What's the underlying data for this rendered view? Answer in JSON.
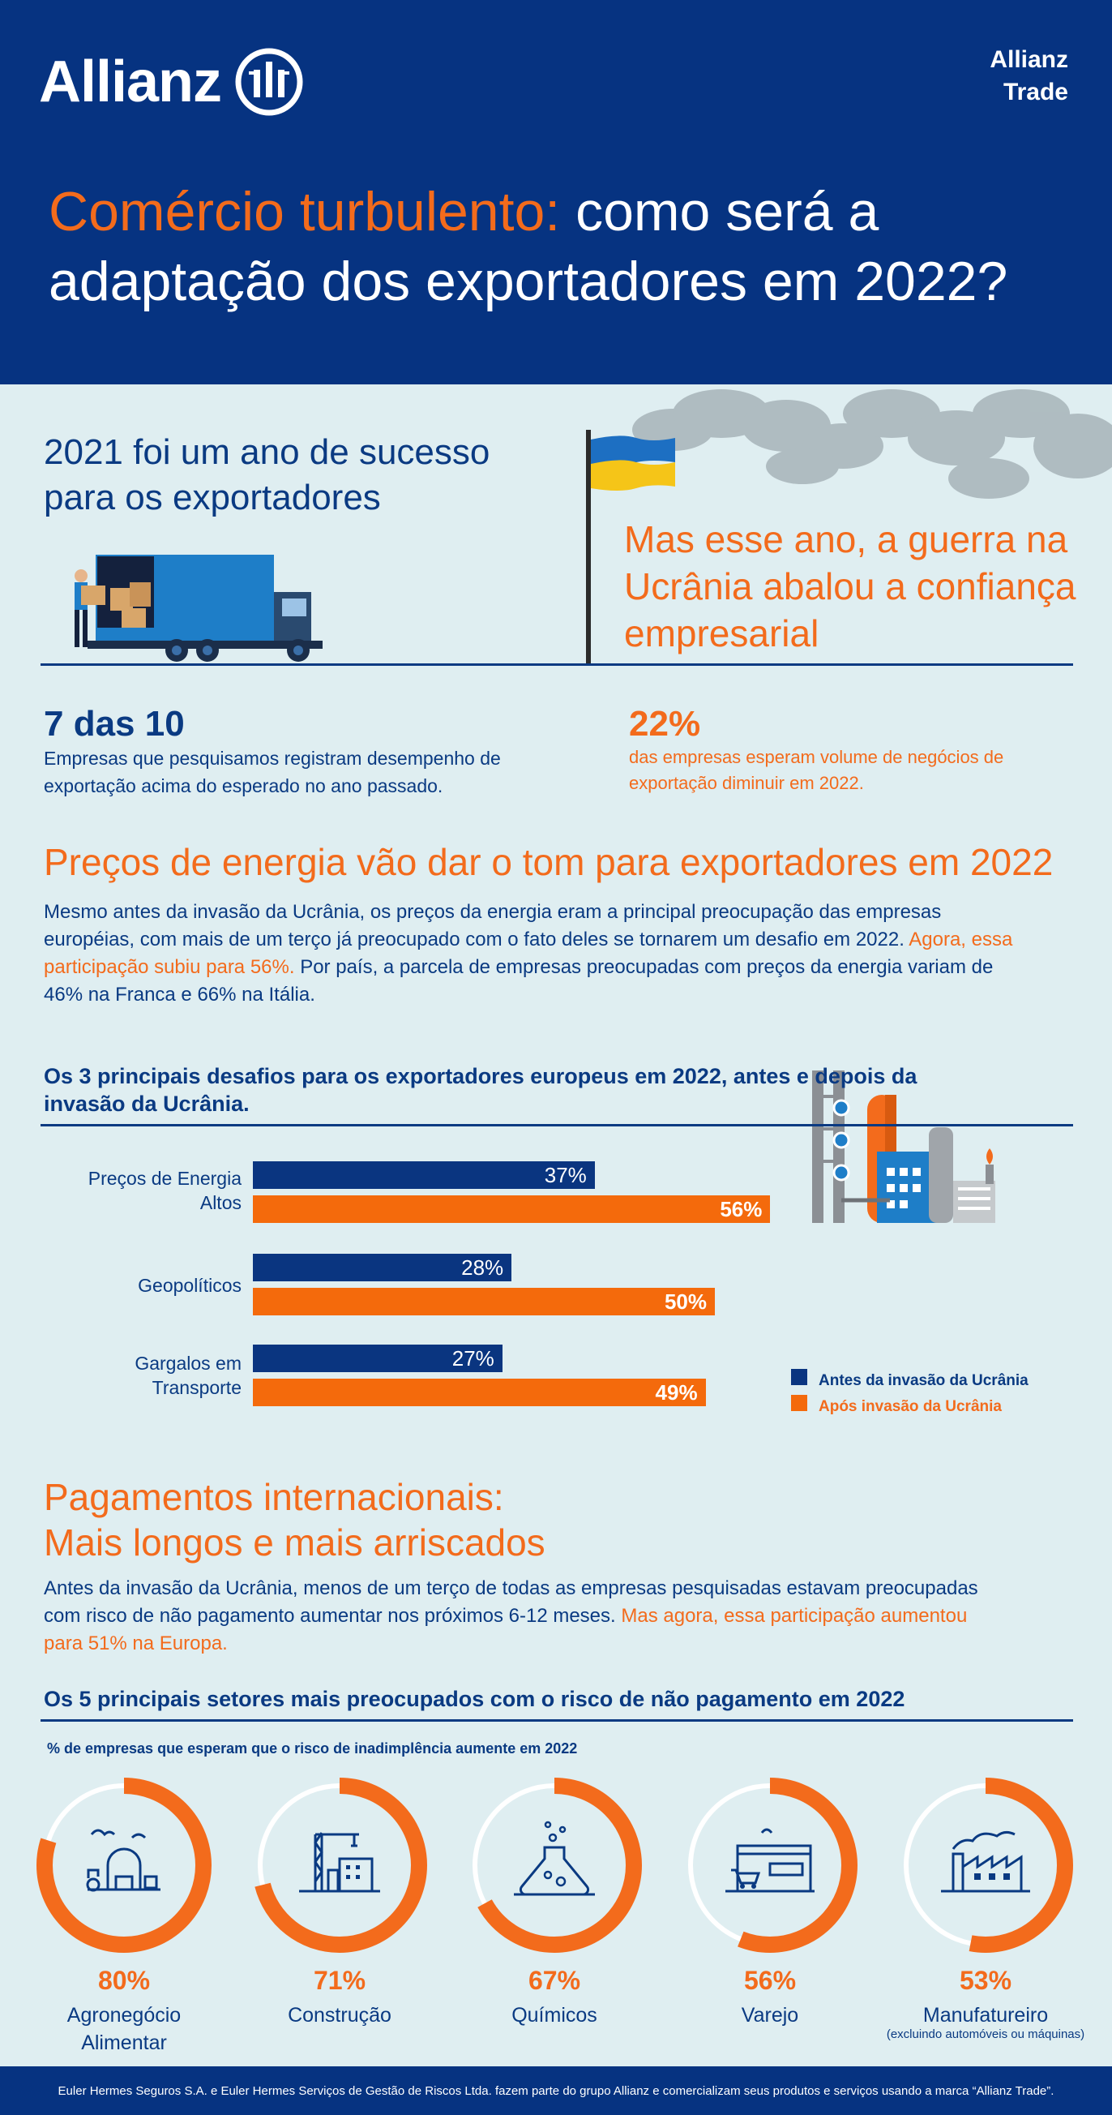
{
  "header": {
    "logo": "Allianz",
    "trade_line1": "Allianz",
    "trade_line2": "Trade",
    "headline_orange": "Comércio turbulento:",
    "headline_white": " como será a adaptação dos exportadores em 2022?"
  },
  "intro": {
    "left_heading": "2021 foi um ano de sucesso para os exportadores",
    "right_heading": "Mas esse ano, a guerra na Ucrânia abalou a confiança empresarial",
    "stat_left_value": "7 das 10",
    "stat_left_text": "Empresas que pesquisamos registram desempenho de exportação acima do esperado no ano passado.",
    "stat_right_value": "22%",
    "stat_right_text": "das empresas esperam volume de negócios de exportação diminuir em 2022."
  },
  "energy": {
    "heading": "Preços de energia vão dar o tom para exportadores em 2022",
    "para_part1": "Mesmo antes da invasão da Ucrânia, os preços da energia eram a principal preocupação das empresas européias, com mais de um terço já preocupado com o fato deles se tornarem um desafio em 2022.",
    "para_highlight": "Agora, essa participação subiu para 56%.",
    "para_part2": " Por país, a parcela de empresas preocupadas com preços da energia variam de 46% na Franca e 66% na Itália.",
    "chart_title": "Os 3 principais desafios para os exportadores europeus em 2022, antes e depois da invasão da Ucrânia."
  },
  "chart_data": {
    "type": "bar",
    "orientation": "horizontal",
    "title": "Os 3 principais desafios para os exportadores europeus em 2022, antes e depois da invasão da Ucrânia.",
    "categories": [
      "Preços de Energia Altos",
      "Geopolíticos",
      "Gargalos em Transporte"
    ],
    "series": [
      {
        "name": "Antes da invasão da Ucrânia",
        "values": [
          37,
          28,
          27
        ],
        "labels": [
          "37%",
          "28%",
          "27%"
        ],
        "color": "#0a3580"
      },
      {
        "name": "Após invasão da Ucrânia",
        "values": [
          56,
          50,
          49
        ],
        "labels": [
          "56%",
          "50%",
          "49%"
        ],
        "color": "#f46a0c"
      }
    ],
    "xlim": [
      0,
      100
    ],
    "grid": false,
    "legend": "bottom-right"
  },
  "chart_labels": {
    "cat1_line1": "Preços de Energia",
    "cat1_line2": "Altos",
    "cat2_line1": "Geopolíticos",
    "cat3_line1": "Gargalos em",
    "cat3_line2": "Transporte"
  },
  "payments": {
    "heading_line1": "Pagamentos internacionais:",
    "heading_line2": "Mais longos e mais arriscados",
    "para_part1": "Antes da invasão da Ucrânia, menos de um terço de todas as empresas pesquisadas estavam preocupadas com risco de não pagamento aumentar nos próximos 6-12 meses.",
    "para_highlight": " Mas agora, essa participação aumentou para 51% na Europa.",
    "sectors_title": "Os 5 principais setores mais preocupados com o risco de não pagamento em 2022",
    "sectors_subtitle": "% de empresas que esperam que o risco de inadimplência aumente em 2022",
    "sectors": [
      {
        "pct": "80%",
        "value": 80,
        "name_line1": "Agronegócio",
        "name_line2": "Alimentar",
        "note": "",
        "icon": "farm-icon"
      },
      {
        "pct": "71%",
        "value": 71,
        "name_line1": "Construção",
        "name_line2": "",
        "note": "",
        "icon": "construction-icon"
      },
      {
        "pct": "67%",
        "value": 67,
        "name_line1": "Químicos",
        "name_line2": "",
        "note": "",
        "icon": "flask-icon"
      },
      {
        "pct": "56%",
        "value": 56,
        "name_line1": "Varejo",
        "name_line2": "",
        "note": "",
        "icon": "store-icon"
      },
      {
        "pct": "53%",
        "value": 53,
        "name_line1": "Manufatureiro",
        "name_line2": "",
        "note": "(excluindo automóveis ou máquinas)",
        "icon": "factory-icon"
      }
    ]
  },
  "footer": {
    "text": "Euler Hermes Seguros S.A. e Euler Hermes Serviços de Gestão de Riscos Ltda. fazem parte do grupo Allianz e comercializam seus produtos e serviços usando a marca “Allianz Trade”."
  },
  "colors": {
    "navy": "#063381",
    "orange": "#f36b1c",
    "background": "#dfeef1"
  }
}
